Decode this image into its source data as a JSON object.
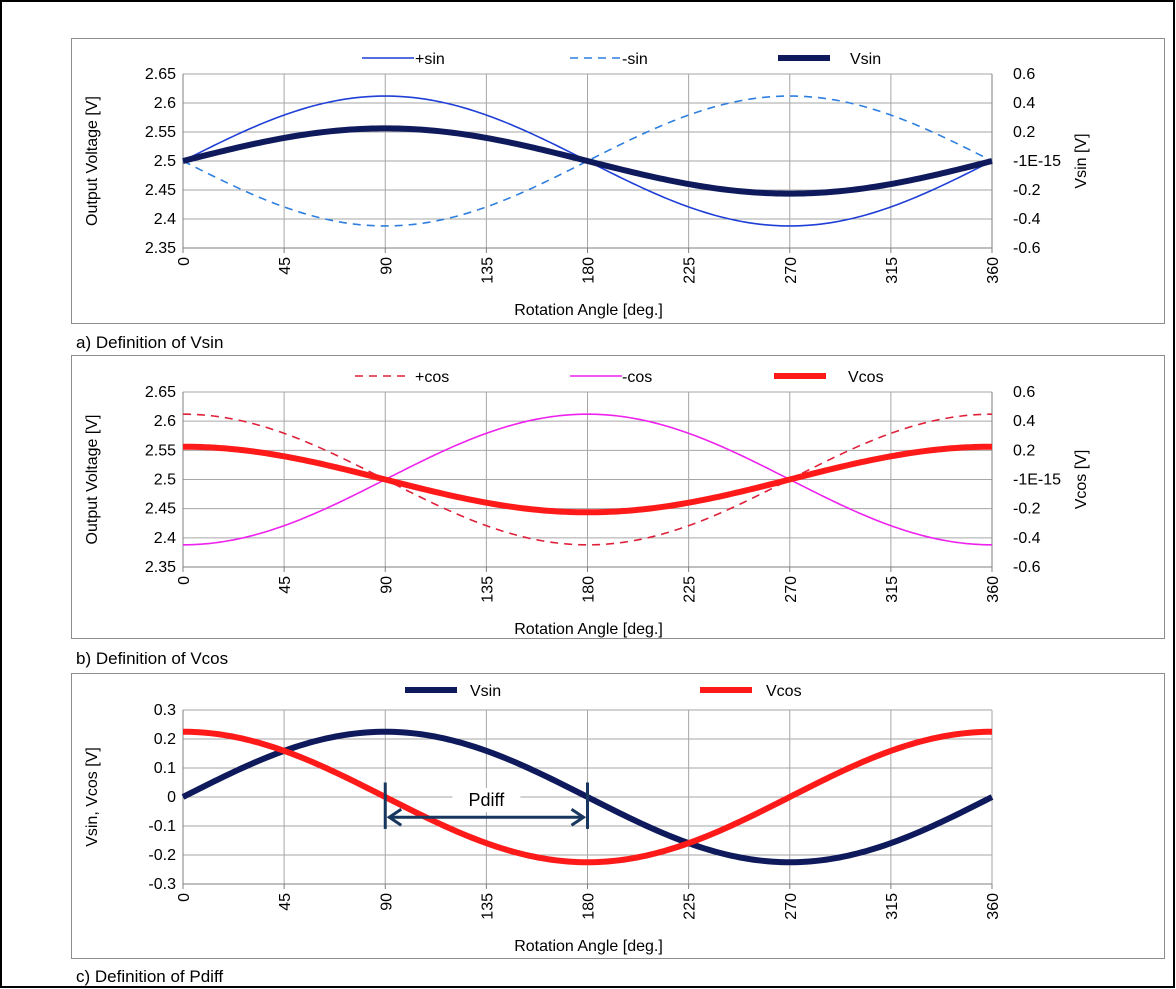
{
  "chart_data": [
    {
      "type": "line",
      "caption": "a) Definition of Vsin",
      "xlabel": "Rotation Angle [deg.]",
      "ylabel": "Output Voltage [V]",
      "y2label": "Vsin [V]",
      "xlim": [
        0,
        360
      ],
      "ylim": [
        2.35,
        2.65
      ],
      "y2lim": [
        -0.6,
        0.6
      ],
      "xticks": [
        "0",
        "45",
        "90",
        "135",
        "180",
        "225",
        "270",
        "315",
        "360"
      ],
      "yticks": [
        "2.35",
        "2.4",
        "2.45",
        "2.5",
        "2.55",
        "2.6",
        "2.65"
      ],
      "y2ticks": [
        "-0.6",
        "-0.4",
        "-0.2",
        "-1E-15",
        "0.2",
        "0.4",
        "0.6"
      ],
      "grid": true,
      "legend_position": "top",
      "x": [
        0,
        45,
        90,
        135,
        180,
        225,
        270,
        315,
        360
      ],
      "series": [
        {
          "name": "+sin",
          "axis": "left",
          "color": "#1f3fd6",
          "dash": "solid",
          "width": 1.6,
          "values": [
            2.5,
            2.579,
            2.612,
            2.579,
            2.5,
            2.421,
            2.388,
            2.421,
            2.5
          ]
        },
        {
          "name": "-sin",
          "axis": "left",
          "color": "#2e7fe0",
          "dash": "dashed",
          "width": 1.6,
          "values": [
            2.5,
            2.421,
            2.388,
            2.421,
            2.5,
            2.579,
            2.612,
            2.579,
            2.5
          ]
        },
        {
          "name": "Vsin",
          "axis": "right",
          "color": "#0f1a5c",
          "dash": "solid",
          "width": 6,
          "values": [
            0,
            0.16,
            0.225,
            0.16,
            0,
            -0.16,
            -0.225,
            -0.16,
            0
          ]
        }
      ]
    },
    {
      "type": "line",
      "caption": "b) Definition of Vcos",
      "xlabel": "Rotation Angle [deg.]",
      "ylabel": "Output Voltage [V]",
      "y2label": "Vcos [V]",
      "xlim": [
        0,
        360
      ],
      "ylim": [
        2.35,
        2.65
      ],
      "y2lim": [
        -0.6,
        0.6
      ],
      "xticks": [
        "0",
        "45",
        "90",
        "135",
        "180",
        "225",
        "270",
        "315",
        "360"
      ],
      "yticks": [
        "2.35",
        "2.4",
        "2.45",
        "2.5",
        "2.55",
        "2.6",
        "2.65"
      ],
      "y2ticks": [
        "-0.6",
        "-0.4",
        "-0.2",
        "-1E-15",
        "0.2",
        "0.4",
        "0.6"
      ],
      "grid": true,
      "legend_position": "top",
      "x": [
        0,
        45,
        90,
        135,
        180,
        225,
        270,
        315,
        360
      ],
      "series": [
        {
          "name": "+cos",
          "axis": "left",
          "color": "#e0203a",
          "dash": "dashed",
          "width": 1.6,
          "values": [
            2.612,
            2.579,
            2.5,
            2.421,
            2.388,
            2.421,
            2.5,
            2.579,
            2.612
          ]
        },
        {
          "name": "-cos",
          "axis": "left",
          "color": "#ee22ee",
          "dash": "solid",
          "width": 1.6,
          "values": [
            2.388,
            2.421,
            2.5,
            2.579,
            2.612,
            2.579,
            2.5,
            2.421,
            2.388
          ]
        },
        {
          "name": "Vcos",
          "axis": "right",
          "color": "#ff1a1a",
          "dash": "solid",
          "width": 6,
          "values": [
            0.225,
            0.16,
            0,
            -0.16,
            -0.225,
            -0.16,
            0,
            0.16,
            0.225
          ]
        }
      ]
    },
    {
      "type": "line",
      "caption": "c) Definition of Pdiff",
      "xlabel": "Rotation Angle [deg.]",
      "ylabel": "Vsin, Vcos [V]",
      "xlim": [
        0,
        360
      ],
      "ylim": [
        -0.3,
        0.3
      ],
      "xticks": [
        "0",
        "45",
        "90",
        "135",
        "180",
        "225",
        "270",
        "315",
        "360"
      ],
      "yticks": [
        "-0.3",
        "-0.2",
        "-0.1",
        "0",
        "0.1",
        "0.2",
        "0.3"
      ],
      "grid": true,
      "legend_position": "top",
      "x": [
        0,
        45,
        90,
        135,
        180,
        225,
        270,
        315,
        360
      ],
      "series": [
        {
          "name": "Vsin",
          "axis": "left",
          "color": "#0f1a5c",
          "dash": "solid",
          "width": 6,
          "values": [
            0,
            0.16,
            0.225,
            0.16,
            0,
            -0.16,
            -0.225,
            -0.16,
            0
          ]
        },
        {
          "name": "Vcos",
          "axis": "left",
          "color": "#ff1a1a",
          "dash": "solid",
          "width": 6,
          "values": [
            0.225,
            0.16,
            0,
            -0.16,
            -0.225,
            -0.16,
            0,
            0.16,
            0.225
          ]
        }
      ],
      "annotation": {
        "label": "Pdiff",
        "x_from": 90,
        "x_to": 180,
        "y": -0.07,
        "color": "#17375e"
      }
    }
  ]
}
